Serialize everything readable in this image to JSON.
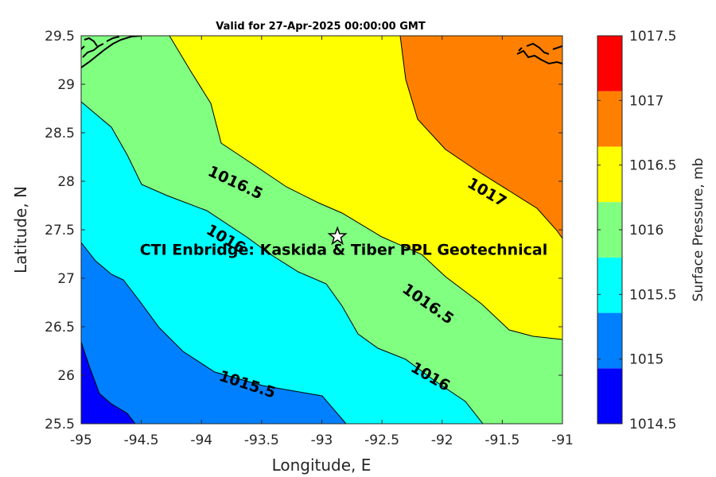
{
  "title": "Valid for 27-Apr-2025 00:00:00 GMT",
  "xlabel": "Longitude, E",
  "ylabel": "Latitude, N",
  "colorbar_label": "Surface Pressure, mb",
  "x_ticks": [
    "-95",
    "-94.5",
    "-94",
    "-93.5",
    "-93",
    "-92.5",
    "-92",
    "-91.5",
    "-91"
  ],
  "y_ticks": [
    "25.5",
    "26",
    "26.5",
    "27",
    "27.5",
    "28",
    "28.5",
    "29",
    "29.5"
  ],
  "colorbar_ticks": [
    "1014.5",
    "1015",
    "1015.5",
    "1016",
    "1016.5",
    "1017",
    "1017.5"
  ],
  "colorbar_colors": [
    "#0000ff",
    "#0080ff",
    "#00ffff",
    "#80ff80",
    "#ffff00",
    "#ff8000",
    "#ff0000"
  ],
  "site": {
    "label": "CTI Enbridge: Kaskida & Tiber PPL Geotechnical",
    "lon": -92.87,
    "lat": 27.43,
    "marker": "star-icon"
  },
  "contour_labels": [
    {
      "text": "1016.5",
      "lon": -93.72,
      "lat": 27.98
    },
    {
      "text": "1017",
      "lon": -91.63,
      "lat": 27.88
    },
    {
      "text": "1016",
      "lon": -93.8,
      "lat": 27.4
    },
    {
      "text": "1016.5",
      "lon": -92.12,
      "lat": 26.73
    },
    {
      "text": "1016",
      "lon": -92.1,
      "lat": 25.98
    },
    {
      "text": "1015.5",
      "lon": -93.62,
      "lat": 25.9
    }
  ],
  "chart_data": {
    "type": "contour-map",
    "title": "Valid for 27-Apr-2025 00:00:00 GMT",
    "xlabel": "Longitude, E",
    "ylabel": "Latitude, N",
    "xlim": [
      -95,
      -91
    ],
    "ylim": [
      25.5,
      29.5
    ],
    "colorbar": {
      "label": "Surface Pressure, mb",
      "range": [
        1014.5,
        1017.5
      ],
      "step": 0.5
    },
    "contour_levels": [
      1015,
      1015.5,
      1016,
      1016.5,
      1017
    ],
    "grid": false
  }
}
